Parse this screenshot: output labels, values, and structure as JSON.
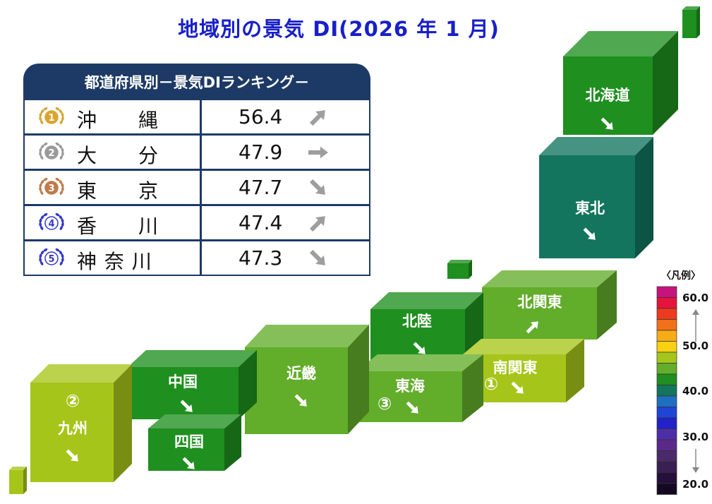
{
  "title": "地域別の景気 DI(2026 年 1 月)",
  "ranking": {
    "header": "都道府県別－景気DIランキング－",
    "rows": [
      {
        "rank": "1",
        "name": "沖　　縄",
        "value": "56.4",
        "trend": "up",
        "medal_color": "#d9a531"
      },
      {
        "rank": "2",
        "name": "大　　分",
        "value": "47.9",
        "trend": "flat",
        "medal_color": "#9a9a9a"
      },
      {
        "rank": "3",
        "name": "東　　京",
        "value": "47.7",
        "trend": "down",
        "medal_color": "#c07a4a"
      },
      {
        "rank": "4",
        "name": "香　　川",
        "value": "47.4",
        "trend": "up",
        "medal_color": "#3438c8"
      },
      {
        "rank": "5",
        "name": "神 奈 川",
        "value": "47.3",
        "trend": "down",
        "medal_color": "#3438c8"
      }
    ]
  },
  "regions": [
    {
      "id": "hokkaido",
      "label": "北海道",
      "trend": "down",
      "rank_mark": "",
      "color": "#1f8f1f"
    },
    {
      "id": "tohoku",
      "label": "東北",
      "trend": "down",
      "rank_mark": "",
      "color": "#13755e"
    },
    {
      "id": "kita-kanto",
      "label": "北関東",
      "trend": "up",
      "rank_mark": "",
      "color": "#62ad2a"
    },
    {
      "id": "hokuriku",
      "label": "北陸",
      "trend": "down",
      "rank_mark": "",
      "color": "#1f8f1f"
    },
    {
      "id": "minami-kanto",
      "label": "南関東",
      "trend": "down",
      "rank_mark": "①",
      "color": "#a6c51a"
    },
    {
      "id": "tokai",
      "label": "東海",
      "trend": "down",
      "rank_mark": "③",
      "color": "#62ad2a"
    },
    {
      "id": "kinki",
      "label": "近畿",
      "trend": "down",
      "rank_mark": "",
      "color": "#62ad2a"
    },
    {
      "id": "chugoku",
      "label": "中国",
      "trend": "down",
      "rank_mark": "",
      "color": "#1f8f1f"
    },
    {
      "id": "shikoku",
      "label": "四国",
      "trend": "down",
      "rank_mark": "",
      "color": "#1f8f1f"
    },
    {
      "id": "kyushu",
      "label": "九州",
      "trend": "down",
      "rank_mark": "②",
      "color": "#a6c51a"
    }
  ],
  "legend": {
    "title": "〈凡例〉",
    "labels": [
      "60.0",
      "50.0",
      "40.0",
      "30.0",
      "20.0"
    ],
    "colors": [
      "#c8127e",
      "#e4143c",
      "#ee3a1e",
      "#f0711a",
      "#f7ac16",
      "#f7d113",
      "#a6c51a",
      "#62ad2a",
      "#1f8f1f",
      "#13755e",
      "#1f6fc0",
      "#1f45d4",
      "#2222c8",
      "#4e2ea8",
      "#5a2a8a",
      "#4a2a6a",
      "#3a1f52",
      "#24103a",
      "#140822"
    ]
  }
}
